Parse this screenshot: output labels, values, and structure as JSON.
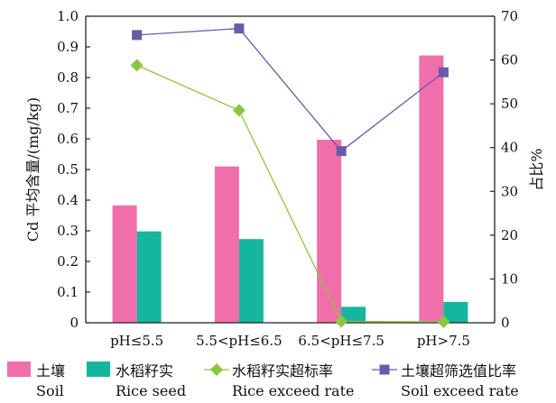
{
  "chart_data": {
    "type": "bar",
    "categories": [
      "pH≤5.5",
      "5.5<pH≤6.5",
      "6.5<pH≤7.5",
      "pH>7.5"
    ],
    "ylabel": "Cd 平均含量/(mg/kg)",
    "y2label": "占比%",
    "ylim": [
      0,
      1.0
    ],
    "y2lim": [
      0,
      70
    ],
    "yticks": [
      "0",
      "0.1",
      "0.2",
      "0.3",
      "0.4",
      "0.5",
      "0.6",
      "0.7",
      "0.8",
      "0.9",
      "1.0"
    ],
    "y2ticks": [
      "0",
      "10",
      "20",
      "30",
      "40",
      "50",
      "60",
      "70"
    ],
    "series": [
      {
        "name": "土壤",
        "name_en": "Soil",
        "kind": "bar",
        "axis": "left",
        "color": "#f06eaa",
        "values": [
          0.383,
          0.51,
          0.597,
          0.872
        ]
      },
      {
        "name": "水稻籽实",
        "name_en": "Rice seed",
        "kind": "bar",
        "axis": "left",
        "color": "#16b5a0",
        "values": [
          0.298,
          0.273,
          0.052,
          0.068
        ]
      },
      {
        "name": "水稻籽实超标率",
        "name_en": "Rice exceed rate",
        "kind": "line",
        "axis": "right",
        "color": "#8cc63f",
        "marker": "diamond",
        "values": [
          58.8,
          48.5,
          0.3,
          0.2
        ]
      },
      {
        "name": "土壤超筛选值比率",
        "name_en": "Soil exceed rate",
        "kind": "line",
        "axis": "right",
        "color": "#6a5aa8",
        "marker": "square",
        "values": [
          65.7,
          67.2,
          39.2,
          57.2
        ]
      }
    ],
    "grid": false,
    "legend": "bottom"
  }
}
